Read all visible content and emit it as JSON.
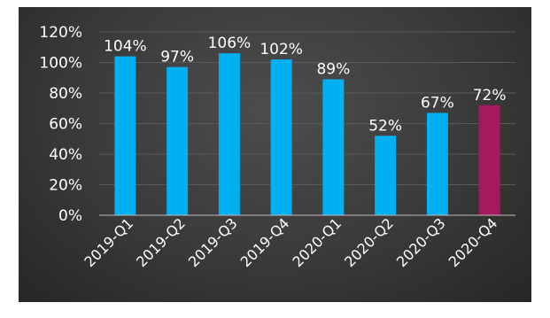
{
  "chart_data": {
    "type": "bar",
    "categories": [
      "2019-Q1",
      "2019-Q2",
      "2019-Q3",
      "2019-Q4",
      "2020-Q1",
      "2020-Q2",
      "2020-Q3",
      "2020-Q4"
    ],
    "values": [
      104,
      97,
      106,
      102,
      89,
      52,
      67,
      72
    ],
    "data_labels": [
      "104%",
      "97%",
      "106%",
      "102%",
      "89%",
      "52%",
      "67%",
      "72%"
    ],
    "ylim": [
      0,
      120
    ],
    "yticks": [
      0,
      20,
      40,
      60,
      80,
      100,
      120
    ],
    "ytick_labels": [
      "0%",
      "20%",
      "40%",
      "60%",
      "80%",
      "100%",
      "120%"
    ],
    "grid": true,
    "colors": {
      "bar": "#00b0f0",
      "highlight_bar": "#a5195f",
      "highlight_index": 7
    }
  }
}
